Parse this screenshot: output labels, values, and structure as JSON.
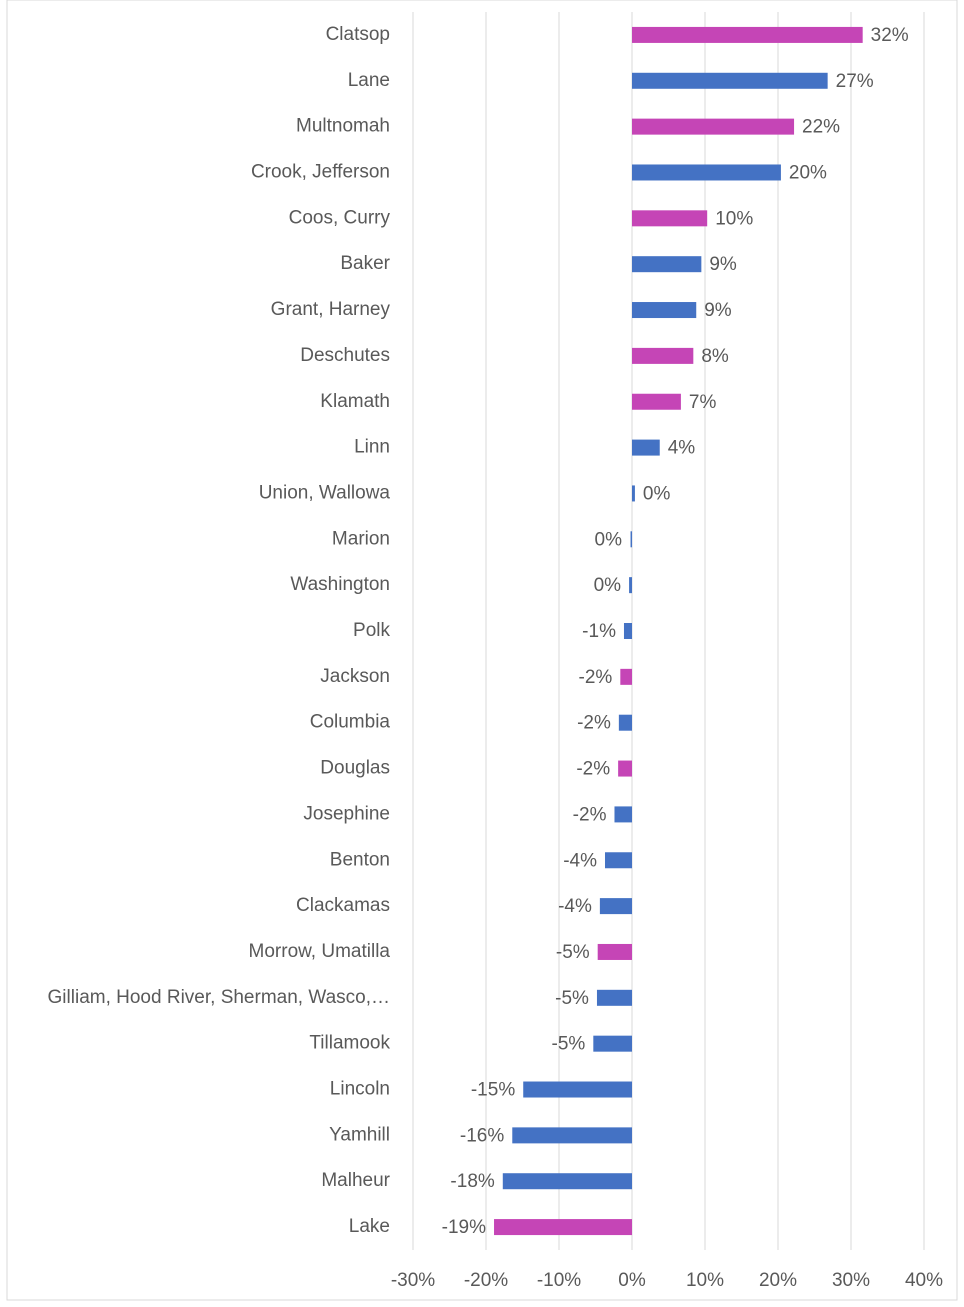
{
  "chart_data": {
    "type": "bar",
    "orientation": "horizontal",
    "categories": [
      "Clatsop",
      "Lane",
      "Multnomah",
      "Crook, Jefferson",
      "Coos, Curry",
      "Baker",
      "Grant, Harney",
      "Deschutes",
      "Klamath",
      "Linn",
      "Union, Wallowa",
      "Marion",
      "Washington",
      "Polk",
      "Jackson",
      "Columbia",
      "Douglas",
      "Josephine",
      "Benton",
      "Clackamas",
      "Morrow, Umatilla",
      "Gilliam, Hood River, Sherman, Wasco,…",
      "Tillamook",
      "Lincoln",
      "Yamhill",
      "Malheur",
      "Lake"
    ],
    "values": [
      31.6,
      26.8,
      22.2,
      20.4,
      10.3,
      9.5,
      8.8,
      8.4,
      6.7,
      3.8,
      0.4,
      -0.2,
      -0.4,
      -1.1,
      -1.6,
      -1.8,
      -1.9,
      -2.4,
      -3.7,
      -4.4,
      -4.7,
      -4.8,
      -5.3,
      -14.9,
      -16.4,
      -17.7,
      -18.9
    ],
    "value_labels": [
      "32%",
      "27%",
      "22%",
      "20%",
      "10%",
      "9%",
      "9%",
      "8%",
      "7%",
      "4%",
      "0%",
      "0%",
      "0%",
      "-1%",
      "-2%",
      "-2%",
      "-2%",
      "-2%",
      "-4%",
      "-4%",
      "-5%",
      "-5%",
      "-5%",
      "-15%",
      "-16%",
      "-18%",
      "-19%"
    ],
    "colors": [
      "#c545b6",
      "#4472c4",
      "#c545b6",
      "#4472c4",
      "#c545b6",
      "#4472c4",
      "#4472c4",
      "#c545b6",
      "#c545b6",
      "#4472c4",
      "#4472c4",
      "#4472c4",
      "#4472c4",
      "#4472c4",
      "#c545b6",
      "#4472c4",
      "#c545b6",
      "#4472c4",
      "#4472c4",
      "#4472c4",
      "#c545b6",
      "#4472c4",
      "#4472c4",
      "#4472c4",
      "#4472c4",
      "#4472c4",
      "#c545b6"
    ],
    "xlim": [
      -30,
      40
    ],
    "xticks": [
      {
        "value": -30,
        "label": "-30%"
      },
      {
        "value": -20,
        "label": "-20%"
      },
      {
        "value": -10,
        "label": "-10%"
      },
      {
        "value": 0,
        "label": "0%"
      },
      {
        "value": 10,
        "label": "10%"
      },
      {
        "value": 20,
        "label": "20%"
      },
      {
        "value": 30,
        "label": "30%"
      },
      {
        "value": 40,
        "label": "40%"
      }
    ],
    "grid": true
  }
}
